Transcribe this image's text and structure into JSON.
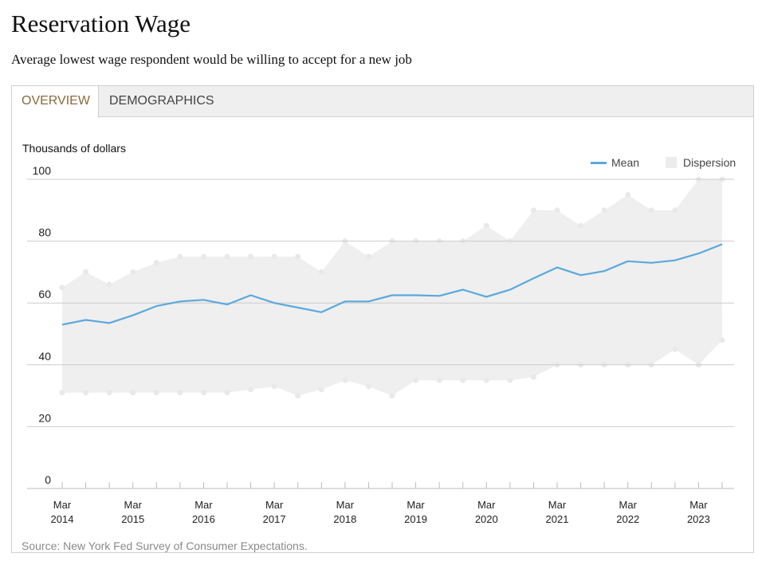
{
  "title": "Reservation Wage",
  "subtitle": "Average lowest wage respondent would be willing to accept for a new job",
  "tabs": [
    {
      "label": "OVERVIEW",
      "active": true
    },
    {
      "label": "DEMOGRAPHICS",
      "active": false
    }
  ],
  "source": "Source: New York Fed Survey of Consumer Expectations.",
  "colors": {
    "mean": "#5aa9de",
    "dispersion": "#efefef",
    "active_tab": "#8a6a3c",
    "grid": "#cccccc"
  },
  "chart_data": {
    "type": "area",
    "title": "Reservation Wage",
    "ylabel": "Thousands of dollars",
    "xlabel": "",
    "ylim": [
      0,
      100
    ],
    "yticks": [
      0,
      20,
      40,
      60,
      80,
      100
    ],
    "x": [
      "Mar 2014",
      "Jul 2014",
      "Nov 2014",
      "Mar 2015",
      "Jul 2015",
      "Nov 2015",
      "Mar 2016",
      "Jul 2016",
      "Nov 2016",
      "Mar 2017",
      "Jul 2017",
      "Nov 2017",
      "Mar 2018",
      "Jul 2018",
      "Nov 2018",
      "Mar 2019",
      "Jul 2019",
      "Nov 2019",
      "Mar 2020",
      "Jul 2020",
      "Nov 2020",
      "Mar 2021",
      "Jul 2021",
      "Nov 2021",
      "Mar 2022",
      "Jul 2022",
      "Nov 2022",
      "Mar 2023",
      "Jul 2023"
    ],
    "xtick_labels": [
      {
        "month": "Mar",
        "year": "2014"
      },
      {
        "month": "Mar",
        "year": "2015"
      },
      {
        "month": "Mar",
        "year": "2016"
      },
      {
        "month": "Mar",
        "year": "2017"
      },
      {
        "month": "Mar",
        "year": "2018"
      },
      {
        "month": "Mar",
        "year": "2019"
      },
      {
        "month": "Mar",
        "year": "2020"
      },
      {
        "month": "Mar",
        "year": "2021"
      },
      {
        "month": "Mar",
        "year": "2022"
      },
      {
        "month": "Mar",
        "year": "2023"
      }
    ],
    "legend": [
      "Mean",
      "Dispersion"
    ],
    "legend_position": "top-right",
    "series": [
      {
        "name": "Mean",
        "type": "line",
        "values": [
          53.0,
          54.5,
          53.5,
          56.0,
          59.0,
          60.5,
          61.0,
          59.5,
          62.5,
          60.0,
          58.5,
          57.0,
          60.5,
          60.5,
          62.5,
          62.5,
          62.3,
          64.3,
          62.0,
          64.3,
          68.0,
          71.5,
          69.0,
          70.3,
          73.5,
          73.0,
          73.8,
          76.0,
          79.0
        ]
      },
      {
        "name": "Dispersion upper",
        "type": "band_upper",
        "values": [
          65,
          70,
          66,
          70,
          73,
          75,
          75,
          75,
          75,
          75,
          75,
          70,
          80,
          75,
          80,
          80,
          80,
          80,
          85,
          80,
          90,
          90,
          85,
          90,
          95,
          90,
          90,
          100,
          100
        ]
      },
      {
        "name": "Dispersion lower",
        "type": "band_lower",
        "values": [
          31,
          31,
          31,
          31,
          31,
          31,
          31,
          31,
          32,
          33,
          30,
          32,
          35,
          33,
          30,
          35,
          35,
          35,
          35,
          35,
          36,
          40,
          40,
          40,
          40,
          40,
          45,
          40,
          48
        ]
      }
    ]
  }
}
